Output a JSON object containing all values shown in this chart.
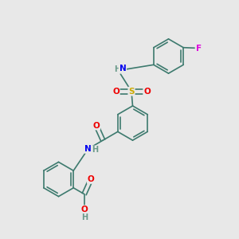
{
  "background_color": "#e8e8e8",
  "bond_color": "#3d7a6e",
  "bond_width": 1.2,
  "atom_colors": {
    "C": "#000000",
    "H": "#6a9a8a",
    "N": "#0000ee",
    "O": "#ee0000",
    "S": "#ccaa00",
    "F": "#dd00dd"
  },
  "font_size": 7.5,
  "fig_size": [
    3.0,
    3.0
  ],
  "dpi": 100,
  "xlim": [
    0,
    10
  ],
  "ylim": [
    0,
    10
  ]
}
